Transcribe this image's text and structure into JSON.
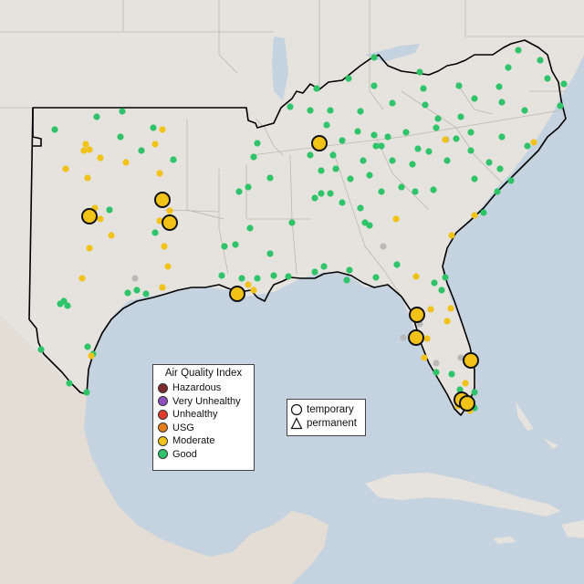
{
  "legend": {
    "title": "Air Quality Index",
    "categories": [
      {
        "label": "Hazardous",
        "color": "#7e2a2f"
      },
      {
        "label": "Very Unhealthy",
        "color": "#8f4ec0"
      },
      {
        "label": "Unhealthy",
        "color": "#e23a2c"
      },
      {
        "label": "USG",
        "color": "#e57c1c"
      },
      {
        "label": "Moderate",
        "color": "#f2c217"
      },
      {
        "label": "Good",
        "color": "#2fc46a"
      }
    ],
    "colors": {
      "good": "#2fc46a",
      "moderate": "#f2c217",
      "nodata": "#b9b9b9"
    }
  },
  "shape_legend": {
    "temporary": "temporary",
    "permanent": "permanent"
  }
}
